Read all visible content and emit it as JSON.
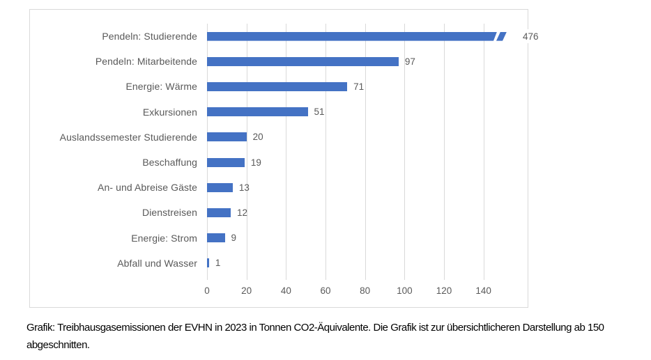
{
  "chart_data": {
    "type": "bar",
    "orientation": "horizontal",
    "categories": [
      "Pendeln: Studierende",
      "Pendeln: Mitarbeitende",
      "Energie: Wärme",
      "Exkursionen",
      "Auslandssemester Studierende",
      "Beschaffung",
      "An- und Abreise Gäste",
      "Dienstreisen",
      "Energie: Strom",
      "Abfall und Wasser"
    ],
    "values": [
      476,
      97,
      71,
      51,
      20,
      19,
      13,
      12,
      9,
      1
    ],
    "data_labels": [
      "476",
      "97",
      "71",
      "51",
      "20",
      "19",
      "13",
      "12",
      "9",
      "1"
    ],
    "axis_ticks": [
      0,
      20,
      40,
      60,
      80,
      100,
      120,
      140
    ],
    "xlim": [
      0,
      162
    ],
    "truncation": {
      "cutoff": 150,
      "category": "Pendeln: Studierende"
    },
    "grid": true,
    "legend": null,
    "title": "",
    "bar_color": "#4472c4",
    "gridline_color": "#d9d9d9",
    "label_color": "#595959"
  },
  "caption": "Grafik: Treibhausgasemissionen der EVHN in 2023 in Tonnen CO2-Äquivalente. Die Grafik ist zur übersichtlicheren Darstellung ab 150 abgeschnitten."
}
